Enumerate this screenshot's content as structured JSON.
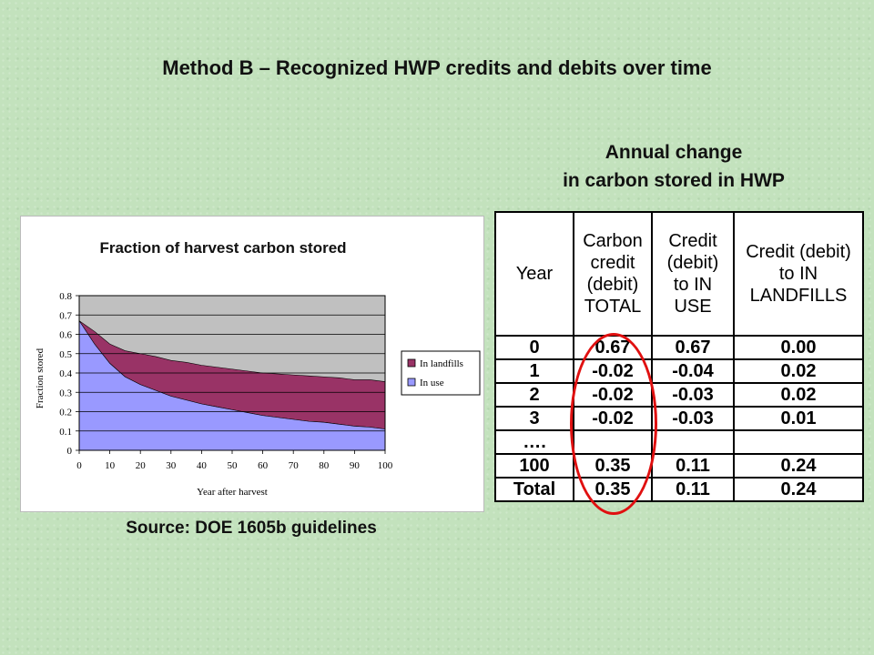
{
  "slide": {
    "title": "Method B – Recognized HWP credits and debits over time",
    "source": "Source: DOE 1605b guidelines"
  },
  "table": {
    "heading_line1": "Annual change",
    "heading_line2": "in carbon stored in HWP",
    "columns": [
      [
        "Year"
      ],
      [
        "Carbon",
        "credit",
        "(debit)",
        "TOTAL"
      ],
      [
        "Credit",
        "(debit)",
        "to IN",
        "USE"
      ],
      [
        "Credit (debit)",
        "to IN",
        "LANDFILLS"
      ]
    ],
    "rows": [
      [
        "0",
        "0.67",
        "0.67",
        "0.00"
      ],
      [
        "1",
        "-0.02",
        "-0.04",
        "0.02"
      ],
      [
        "2",
        "-0.02",
        "-0.03",
        "0.02"
      ],
      [
        "3",
        "-0.02",
        "-0.03",
        "0.01"
      ],
      [
        "….",
        "",
        "",
        ""
      ],
      [
        "100",
        "0.35",
        "0.11",
        "0.24"
      ],
      [
        "Total",
        "0.35",
        "0.11",
        "0.24"
      ]
    ],
    "highlight_color": "#e01010"
  },
  "chart_data": {
    "type": "area",
    "title": "Fraction of harvest carbon stored",
    "xlabel": "Year after harvest",
    "ylabel": "Fraction stored",
    "xlim": [
      0,
      100
    ],
    "ylim": [
      0,
      0.8
    ],
    "x_ticks": [
      0,
      10,
      20,
      30,
      40,
      50,
      60,
      70,
      80,
      90,
      100
    ],
    "y_ticks": [
      "0",
      "0.1",
      "0.2",
      "0.3",
      "0.4",
      "0.5",
      "0.6",
      "0.7",
      "0.8"
    ],
    "grid": true,
    "legend_position": "right",
    "x": [
      0,
      5,
      10,
      15,
      20,
      25,
      30,
      35,
      40,
      45,
      50,
      55,
      60,
      65,
      70,
      75,
      80,
      85,
      90,
      95,
      100
    ],
    "series": [
      {
        "name": "In landfills",
        "color": "#993366",
        "values": [
          0.0,
          0.065,
          0.1,
          0.135,
          0.16,
          0.175,
          0.185,
          0.195,
          0.2,
          0.205,
          0.21,
          0.215,
          0.22,
          0.225,
          0.23,
          0.235,
          0.235,
          0.24,
          0.24,
          0.245,
          0.245
        ]
      },
      {
        "name": "In use",
        "color": "#9999ff",
        "values": [
          0.67,
          0.55,
          0.45,
          0.38,
          0.34,
          0.31,
          0.28,
          0.26,
          0.24,
          0.225,
          0.21,
          0.195,
          0.18,
          0.17,
          0.16,
          0.15,
          0.145,
          0.135,
          0.125,
          0.12,
          0.11
        ]
      }
    ],
    "plot_background": "#c0c0c0"
  }
}
